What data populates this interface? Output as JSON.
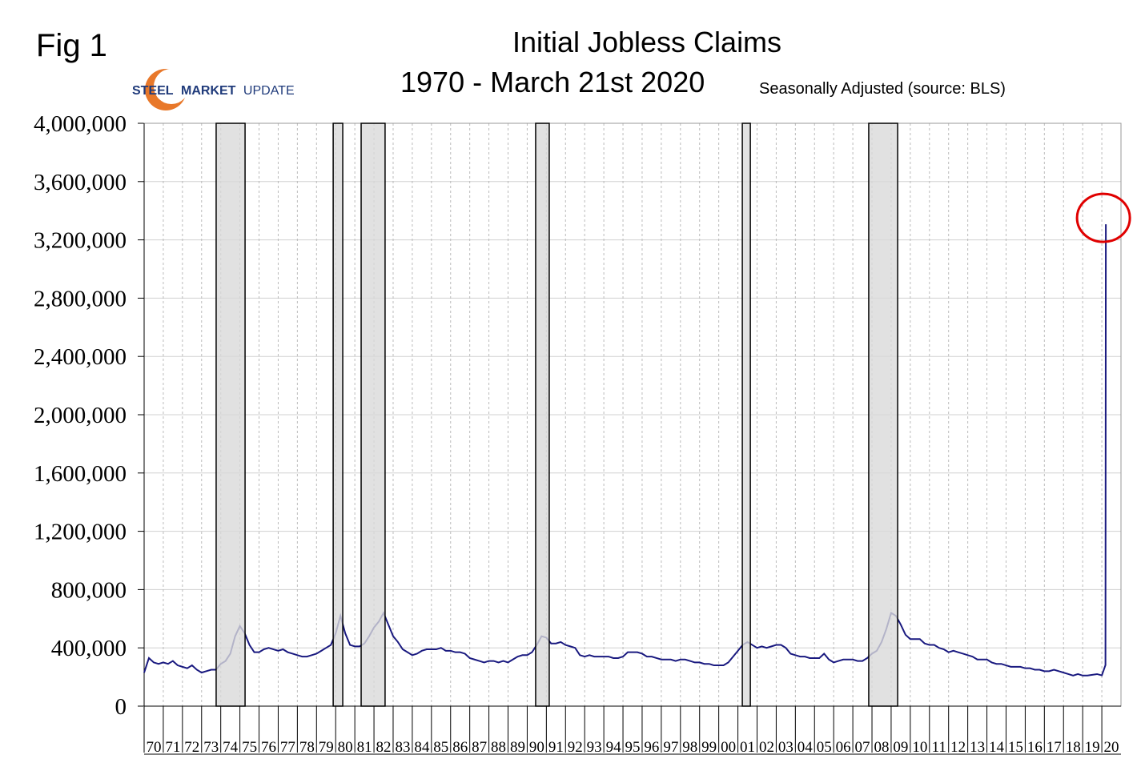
{
  "chart_data": {
    "type": "line",
    "fig_label": "Fig 1",
    "title": "Initial Jobless Claims",
    "subtitle": "1970 - March 21st 2020",
    "note": "Seasonally Adjusted  (source: BLS)",
    "logo": [
      "STEEL",
      "MARKET",
      "UPDATE"
    ],
    "xlim": [
      1970,
      2021
    ],
    "xticks": [
      {
        "value": 1970,
        "label": "70"
      },
      {
        "value": 1971,
        "label": "71"
      },
      {
        "value": 1972,
        "label": "72"
      },
      {
        "value": 1973,
        "label": "73"
      },
      {
        "value": 1974,
        "label": "74"
      },
      {
        "value": 1975,
        "label": "75"
      },
      {
        "value": 1976,
        "label": "76"
      },
      {
        "value": 1977,
        "label": "77"
      },
      {
        "value": 1978,
        "label": "78"
      },
      {
        "value": 1979,
        "label": "79"
      },
      {
        "value": 1980,
        "label": "80"
      },
      {
        "value": 1981,
        "label": "81"
      },
      {
        "value": 1982,
        "label": "82"
      },
      {
        "value": 1983,
        "label": "83"
      },
      {
        "value": 1984,
        "label": "84"
      },
      {
        "value": 1985,
        "label": "85"
      },
      {
        "value": 1986,
        "label": "86"
      },
      {
        "value": 1987,
        "label": "87"
      },
      {
        "value": 1988,
        "label": "88"
      },
      {
        "value": 1989,
        "label": "89"
      },
      {
        "value": 1990,
        "label": "90"
      },
      {
        "value": 1991,
        "label": "91"
      },
      {
        "value": 1992,
        "label": "92"
      },
      {
        "value": 1993,
        "label": "93"
      },
      {
        "value": 1994,
        "label": "94"
      },
      {
        "value": 1995,
        "label": "95"
      },
      {
        "value": 1996,
        "label": "96"
      },
      {
        "value": 1997,
        "label": "97"
      },
      {
        "value": 1998,
        "label": "98"
      },
      {
        "value": 1999,
        "label": "99"
      },
      {
        "value": 2000,
        "label": "00"
      },
      {
        "value": 2001,
        "label": "01"
      },
      {
        "value": 2002,
        "label": "02"
      },
      {
        "value": 2003,
        "label": "03"
      },
      {
        "value": 2004,
        "label": "04"
      },
      {
        "value": 2005,
        "label": "05"
      },
      {
        "value": 2006,
        "label": "06"
      },
      {
        "value": 2007,
        "label": "07"
      },
      {
        "value": 2008,
        "label": "08"
      },
      {
        "value": 2009,
        "label": "09"
      },
      {
        "value": 2010,
        "label": "10"
      },
      {
        "value": 2011,
        "label": "11"
      },
      {
        "value": 2012,
        "label": "12"
      },
      {
        "value": 2013,
        "label": "13"
      },
      {
        "value": 2014,
        "label": "14"
      },
      {
        "value": 2015,
        "label": "15"
      },
      {
        "value": 2016,
        "label": "16"
      },
      {
        "value": 2017,
        "label": "17"
      },
      {
        "value": 2018,
        "label": "18"
      },
      {
        "value": 2019,
        "label": "19"
      },
      {
        "value": 2020,
        "label": "20"
      }
    ],
    "ylim": [
      0,
      4000000
    ],
    "yticks": [
      0,
      {
        "value": 400000,
        "label": "400,000"
      },
      {
        "value": 800000,
        "label": "800,000"
      },
      {
        "value": 1200000,
        "label": "1,200,000"
      },
      {
        "value": 1600000,
        "label": "1,600,000"
      },
      {
        "value": 2000000,
        "label": "2,000,000"
      },
      {
        "value": 2400000,
        "label": "2,400,000"
      },
      {
        "value": 2800000,
        "label": "2,800,000"
      },
      {
        "value": 3200000,
        "label": "3,200,000"
      },
      {
        "value": 3600000,
        "label": "3,600,000"
      },
      {
        "value": 4000000,
        "label": "4,000,000"
      }
    ],
    "grid": true,
    "recessions": [
      [
        1973.76,
        1975.27
      ],
      [
        1979.87,
        1980.37
      ],
      [
        1981.33,
        1982.58
      ],
      [
        1990.44,
        1991.15
      ],
      [
        2001.23,
        2001.65
      ],
      [
        2007.83,
        2009.34
      ]
    ],
    "recession_color": "#d9d9d9",
    "highlight_color": "#e00000",
    "x": [
      1970,
      1970.25,
      1970.5,
      1970.75,
      1971,
      1971.25,
      1971.5,
      1971.75,
      1972,
      1972.25,
      1972.5,
      1972.75,
      1973,
      1973.25,
      1973.5,
      1973.75,
      1974,
      1974.25,
      1974.5,
      1974.75,
      1975,
      1975.25,
      1975.5,
      1975.75,
      1976,
      1976.25,
      1976.5,
      1976.75,
      1977,
      1977.25,
      1977.5,
      1977.75,
      1978,
      1978.25,
      1978.5,
      1978.75,
      1979,
      1979.25,
      1979.5,
      1979.75,
      1980,
      1980.25,
      1980.5,
      1980.75,
      1981,
      1981.25,
      1981.5,
      1981.75,
      1982,
      1982.25,
      1982.5,
      1982.75,
      1983,
      1983.25,
      1983.5,
      1983.75,
      1984,
      1984.25,
      1984.5,
      1984.75,
      1985,
      1985.25,
      1985.5,
      1985.75,
      1986,
      1986.25,
      1986.5,
      1986.75,
      1987,
      1987.25,
      1987.5,
      1987.75,
      1988,
      1988.25,
      1988.5,
      1988.75,
      1989,
      1989.25,
      1989.5,
      1989.75,
      1990,
      1990.25,
      1990.5,
      1990.75,
      1991,
      1991.25,
      1991.5,
      1991.75,
      1992,
      1992.25,
      1992.5,
      1992.75,
      1993,
      1993.25,
      1993.5,
      1993.75,
      1994,
      1994.25,
      1994.5,
      1994.75,
      1995,
      1995.25,
      1995.5,
      1995.75,
      1996,
      1996.25,
      1996.5,
      1996.75,
      1997,
      1997.25,
      1997.5,
      1997.75,
      1998,
      1998.25,
      1998.5,
      1998.75,
      1999,
      1999.25,
      1999.5,
      1999.75,
      2000,
      2000.25,
      2000.5,
      2000.75,
      2001,
      2001.25,
      2001.5,
      2001.75,
      2002,
      2002.25,
      2002.5,
      2002.75,
      2003,
      2003.25,
      2003.5,
      2003.75,
      2004,
      2004.25,
      2004.5,
      2004.75,
      2005,
      2005.25,
      2005.5,
      2005.75,
      2006,
      2006.25,
      2006.5,
      2006.75,
      2007,
      2007.25,
      2007.5,
      2007.75,
      2008,
      2008.25,
      2008.5,
      2008.75,
      2009,
      2009.25,
      2009.5,
      2009.75,
      2010,
      2010.25,
      2010.5,
      2010.75,
      2011,
      2011.25,
      2011.5,
      2011.75,
      2012,
      2012.25,
      2012.5,
      2012.75,
      2013,
      2013.25,
      2013.5,
      2013.75,
      2014,
      2014.25,
      2014.5,
      2014.75,
      2015,
      2015.25,
      2015.5,
      2015.75,
      2016,
      2016.25,
      2016.5,
      2016.75,
      2017,
      2017.25,
      2017.5,
      2017.75,
      2018,
      2018.25,
      2018.5,
      2018.75,
      2019,
      2019.25,
      2019.5,
      2019.75,
      2020,
      2020.19,
      2020.21
    ],
    "series": [
      {
        "name": "Initial Jobless Claims",
        "color": "#1a1a80",
        "values": [
          230000,
          330000,
          300000,
          290000,
          300000,
          290000,
          310000,
          280000,
          270000,
          260000,
          280000,
          250000,
          230000,
          240000,
          250000,
          250000,
          290000,
          310000,
          360000,
          480000,
          550000,
          500000,
          420000,
          370000,
          370000,
          390000,
          400000,
          390000,
          380000,
          390000,
          370000,
          360000,
          350000,
          340000,
          340000,
          350000,
          360000,
          380000,
          400000,
          420000,
          500000,
          620000,
          500000,
          420000,
          410000,
          410000,
          430000,
          480000,
          540000,
          580000,
          640000,
          560000,
          480000,
          440000,
          390000,
          370000,
          350000,
          360000,
          380000,
          390000,
          390000,
          390000,
          400000,
          380000,
          380000,
          370000,
          370000,
          360000,
          330000,
          320000,
          310000,
          300000,
          310000,
          310000,
          300000,
          310000,
          300000,
          320000,
          340000,
          350000,
          350000,
          370000,
          420000,
          480000,
          470000,
          430000,
          430000,
          440000,
          420000,
          410000,
          400000,
          350000,
          340000,
          350000,
          340000,
          340000,
          340000,
          340000,
          330000,
          330000,
          340000,
          370000,
          370000,
          370000,
          360000,
          340000,
          340000,
          330000,
          320000,
          320000,
          320000,
          310000,
          320000,
          320000,
          310000,
          300000,
          300000,
          290000,
          290000,
          280000,
          280000,
          280000,
          300000,
          340000,
          380000,
          420000,
          440000,
          420000,
          400000,
          410000,
          400000,
          410000,
          420000,
          420000,
          400000,
          360000,
          350000,
          340000,
          340000,
          330000,
          330000,
          330000,
          360000,
          320000,
          300000,
          310000,
          320000,
          320000,
          320000,
          310000,
          310000,
          330000,
          360000,
          380000,
          440000,
          530000,
          640000,
          620000,
          560000,
          490000,
          460000,
          460000,
          460000,
          430000,
          420000,
          420000,
          400000,
          390000,
          370000,
          380000,
          370000,
          360000,
          350000,
          340000,
          320000,
          320000,
          320000,
          300000,
          290000,
          290000,
          280000,
          270000,
          270000,
          270000,
          260000,
          260000,
          250000,
          250000,
          240000,
          240000,
          250000,
          240000,
          230000,
          220000,
          210000,
          220000,
          210000,
          210000,
          215000,
          220000,
          211000,
          282000,
          3307000
        ]
      }
    ]
  }
}
